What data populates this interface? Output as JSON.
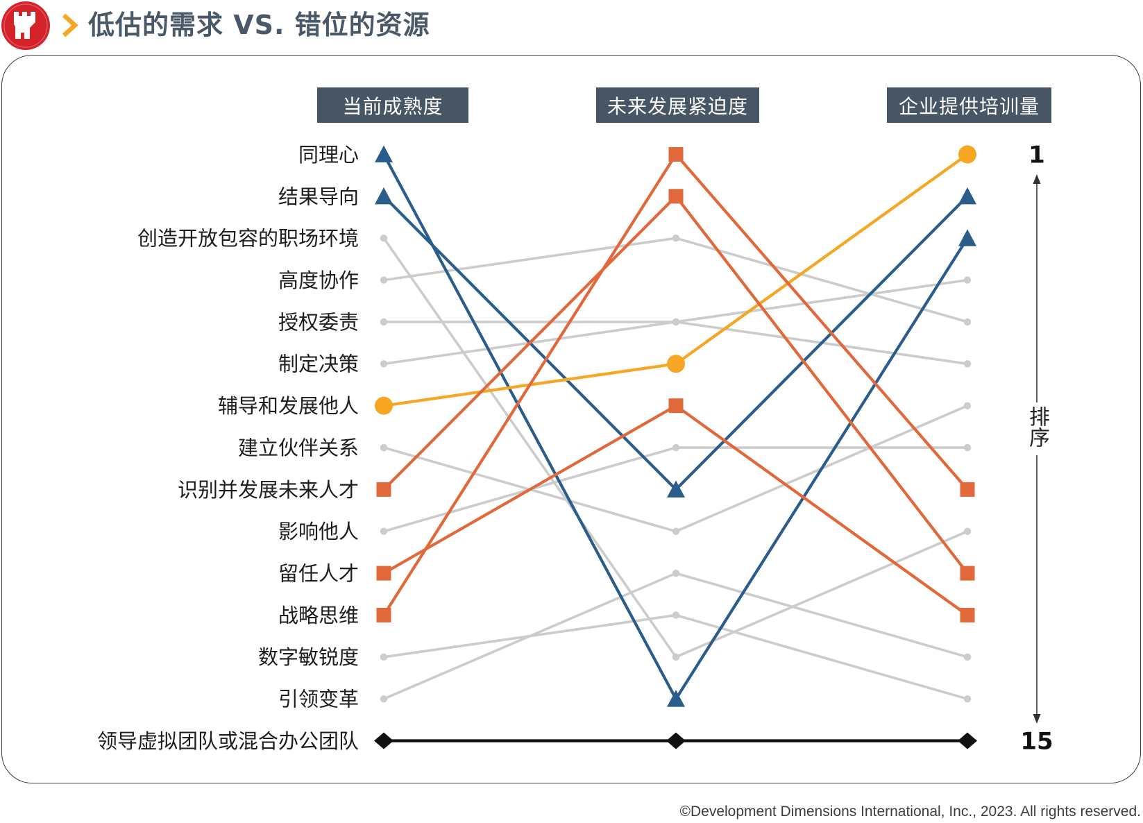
{
  "chart_data": {
    "type": "line",
    "title": "低估的需求 VS. 错位的资源",
    "categories": [
      "当前成熟度",
      "未来发展紧迫度",
      "企业提供培训量"
    ],
    "ylabel": "排序",
    "ylim": [
      1,
      15
    ],
    "y_inverted": true,
    "y_tick_labels": [
      "1",
      "15"
    ],
    "grid": false,
    "legend": "none",
    "series": [
      {
        "name": "同理心",
        "values": [
          1,
          14,
          3
        ],
        "color": "#2b5d8c",
        "marker": "triangle-marker"
      },
      {
        "name": "结果导向",
        "values": [
          2,
          9,
          2
        ],
        "color": "#2b5d8c",
        "marker": "triangle-marker"
      },
      {
        "name": "创造开放包容的职场环境",
        "values": [
          3,
          13,
          10
        ],
        "color": "#cccccc",
        "marker": "dot-marker"
      },
      {
        "name": "高度协作",
        "values": [
          4,
          3,
          5
        ],
        "color": "#cccccc",
        "marker": "dot-marker"
      },
      {
        "name": "授权委责",
        "values": [
          5,
          5,
          6
        ],
        "color": "#cccccc",
        "marker": "dot-marker"
      },
      {
        "name": "制定决策",
        "values": [
          6,
          5,
          4
        ],
        "color": "#cccccc",
        "marker": "dot-marker"
      },
      {
        "name": "辅导和发展他人",
        "values": [
          7,
          6,
          1
        ],
        "color": "#f6a623",
        "marker": "circle-marker"
      },
      {
        "name": "建立伙伴关系",
        "values": [
          8,
          10,
          7
        ],
        "color": "#cccccc",
        "marker": "dot-marker"
      },
      {
        "name": "识别并发展未来人才",
        "values": [
          9,
          2,
          11
        ],
        "color": "#e1683a",
        "marker": "square-marker"
      },
      {
        "name": "影响他人",
        "values": [
          10,
          8,
          8
        ],
        "color": "#cccccc",
        "marker": "dot-marker"
      },
      {
        "name": "留任人才",
        "values": [
          11,
          7,
          12
        ],
        "color": "#e1683a",
        "marker": "square-marker"
      },
      {
        "name": "战略思维",
        "values": [
          12,
          1,
          9
        ],
        "color": "#e1683a",
        "marker": "square-marker"
      },
      {
        "name": "数字敏锐度",
        "values": [
          13,
          12,
          14
        ],
        "color": "#cccccc",
        "marker": "dot-marker"
      },
      {
        "name": "引领变革",
        "values": [
          14,
          11,
          13
        ],
        "color": "#cccccc",
        "marker": "dot-marker"
      },
      {
        "name": "领导虚拟团队或混合办公团队",
        "values": [
          15,
          15,
          15
        ],
        "color": "#111111",
        "marker": "diamond-marker"
      }
    ]
  },
  "footer": {
    "copyright": "©Development Dimensions International, Inc., 2023. All rights reserved."
  },
  "colors": {
    "logo_red": "#d5232b",
    "chevron": "#f6a623",
    "header_box": "#475564",
    "title_text": "#4b5867",
    "frame": "#3a3a3a"
  },
  "icons": {
    "logo": "castle-logo-icon",
    "title_marker": "chevron-right-icon",
    "axis_top": "arrow-up-icon",
    "axis_bottom": "arrow-down-icon"
  }
}
